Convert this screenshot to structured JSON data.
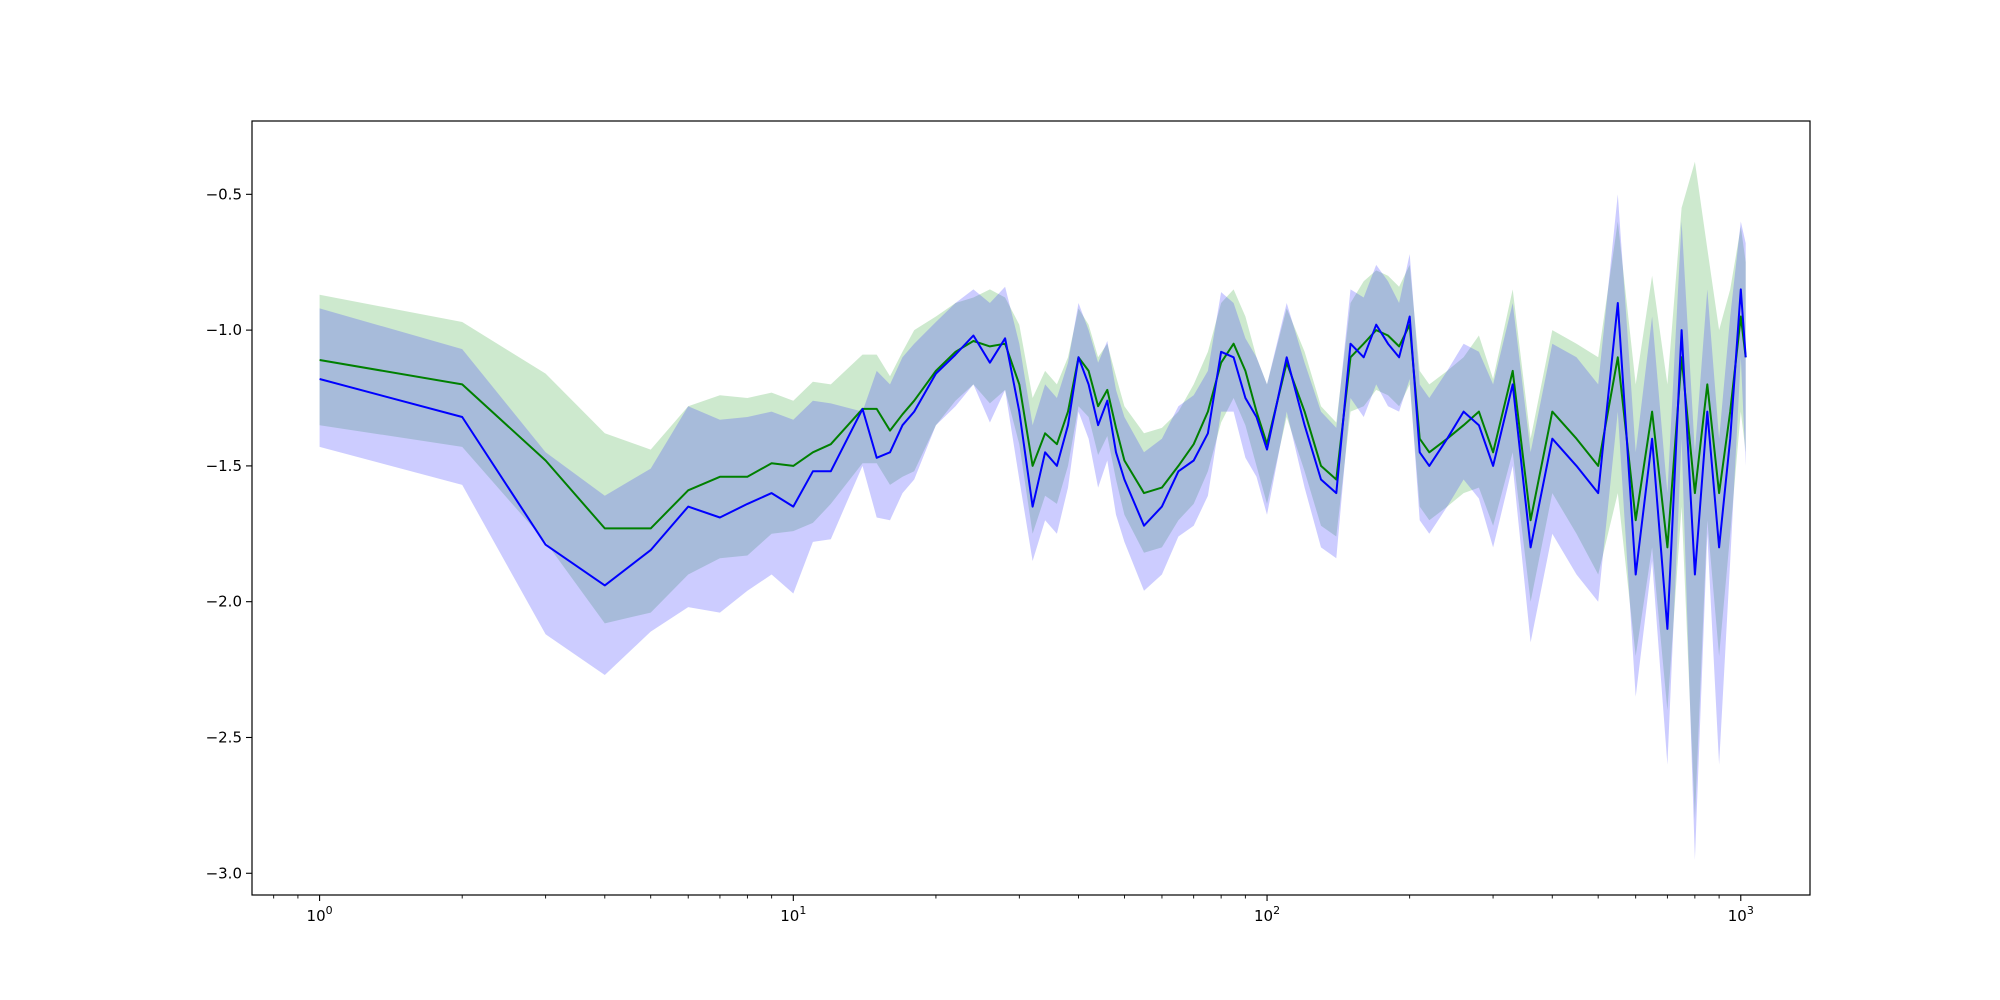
{
  "chart_data": {
    "type": "line",
    "title": "",
    "xlabel": "",
    "ylabel": "",
    "xscale": "log",
    "xlim": [
      0.72,
      1400
    ],
    "ylim": [
      -3.08,
      -0.23
    ],
    "grid": false,
    "legend": "none",
    "x_ticks": [
      {
        "value": 1,
        "base": "10",
        "exp": "0"
      },
      {
        "value": 10,
        "base": "10",
        "exp": "1"
      },
      {
        "value": 100,
        "base": "10",
        "exp": "2"
      },
      {
        "value": 1000,
        "base": "10",
        "exp": "3"
      }
    ],
    "y_ticks": [
      {
        "value": -0.5,
        "label": "−0.5"
      },
      {
        "value": -1.0,
        "label": "−1.0"
      },
      {
        "value": -1.5,
        "label": "−1.5"
      },
      {
        "value": -2.0,
        "label": "−2.0"
      },
      {
        "value": -2.5,
        "label": "−2.5"
      },
      {
        "value": -3.0,
        "label": "−3.0"
      }
    ],
    "series": [
      {
        "color": "#008000",
        "band_color": "#4caf50",
        "band_opacity": 0.28,
        "x": [
          1,
          2,
          3,
          4,
          5,
          6,
          7,
          8,
          9,
          10,
          11,
          12,
          14,
          15,
          16,
          17,
          18,
          20,
          22,
          24,
          26,
          28,
          30,
          32,
          34,
          36,
          38,
          40,
          42,
          44,
          46,
          48,
          50,
          55,
          60,
          65,
          70,
          75,
          80,
          85,
          90,
          95,
          100,
          110,
          120,
          130,
          140,
          150,
          160,
          170,
          180,
          190,
          200,
          210,
          220,
          240,
          260,
          280,
          300,
          330,
          360,
          400,
          450,
          500,
          550,
          600,
          650,
          700,
          750,
          800,
          850,
          900,
          950,
          1000,
          1024
        ],
        "y": [
          -1.11,
          -1.2,
          -1.48,
          -1.73,
          -1.73,
          -1.59,
          -1.54,
          -1.54,
          -1.49,
          -1.5,
          -1.45,
          -1.42,
          -1.29,
          -1.29,
          -1.37,
          -1.31,
          -1.26,
          -1.15,
          -1.08,
          -1.04,
          -1.06,
          -1.05,
          -1.2,
          -1.5,
          -1.38,
          -1.42,
          -1.3,
          -1.1,
          -1.15,
          -1.28,
          -1.22,
          -1.36,
          -1.48,
          -1.6,
          -1.58,
          -1.5,
          -1.42,
          -1.3,
          -1.12,
          -1.05,
          -1.15,
          -1.3,
          -1.42,
          -1.12,
          -1.3,
          -1.5,
          -1.55,
          -1.1,
          -1.05,
          -1.0,
          -1.02,
          -1.06,
          -0.98,
          -1.4,
          -1.45,
          -1.4,
          -1.35,
          -1.3,
          -1.45,
          -1.15,
          -1.7,
          -1.3,
          -1.4,
          -1.5,
          -1.1,
          -1.7,
          -1.3,
          -1.8,
          -1.1,
          -1.6,
          -1.2,
          -1.6,
          -1.3,
          -0.95,
          -1.1
        ],
        "upper": [
          -0.87,
          -0.97,
          -1.16,
          -1.38,
          -1.44,
          -1.28,
          -1.24,
          -1.25,
          -1.23,
          -1.26,
          -1.19,
          -1.2,
          -1.09,
          -1.09,
          -1.17,
          -1.08,
          -1.0,
          -0.95,
          -0.9,
          -0.88,
          -0.85,
          -0.88,
          -0.98,
          -1.25,
          -1.15,
          -1.2,
          -1.1,
          -0.92,
          -0.98,
          -1.1,
          -1.05,
          -1.17,
          -1.28,
          -1.38,
          -1.36,
          -1.3,
          -1.2,
          -1.08,
          -0.9,
          -0.85,
          -0.95,
          -1.1,
          -1.2,
          -0.92,
          -1.08,
          -1.28,
          -1.34,
          -0.9,
          -0.82,
          -0.78,
          -0.8,
          -0.84,
          -0.76,
          -1.15,
          -1.2,
          -1.15,
          -1.1,
          -1.02,
          -1.18,
          -0.85,
          -1.4,
          -1.0,
          -1.05,
          -1.1,
          -0.6,
          -1.2,
          -0.8,
          -1.2,
          -0.55,
          -0.38,
          -0.7,
          -1.0,
          -0.85,
          -0.62,
          -0.75
        ],
        "lower": [
          -1.35,
          -1.43,
          -1.78,
          -2.08,
          -2.04,
          -1.9,
          -1.84,
          -1.83,
          -1.75,
          -1.74,
          -1.71,
          -1.64,
          -1.49,
          -1.49,
          -1.57,
          -1.54,
          -1.52,
          -1.35,
          -1.26,
          -1.2,
          -1.27,
          -1.22,
          -1.42,
          -1.75,
          -1.61,
          -1.64,
          -1.5,
          -1.28,
          -1.32,
          -1.46,
          -1.39,
          -1.55,
          -1.68,
          -1.82,
          -1.8,
          -1.7,
          -1.64,
          -1.52,
          -1.34,
          -1.25,
          -1.35,
          -1.5,
          -1.64,
          -1.32,
          -1.52,
          -1.72,
          -1.76,
          -1.3,
          -1.28,
          -1.22,
          -1.24,
          -1.28,
          -1.2,
          -1.65,
          -1.7,
          -1.65,
          -1.6,
          -1.58,
          -1.72,
          -1.45,
          -2.0,
          -1.6,
          -1.75,
          -1.9,
          -1.6,
          -2.2,
          -1.8,
          -2.4,
          -1.65,
          -2.8,
          -1.7,
          -2.2,
          -1.75,
          -1.3,
          -1.45
        ]
      },
      {
        "color": "#0000ff",
        "band_color": "#3b3bff",
        "band_opacity": 0.26,
        "x": [
          1,
          2,
          3,
          4,
          5,
          6,
          7,
          8,
          9,
          10,
          11,
          12,
          14,
          15,
          16,
          17,
          18,
          20,
          22,
          24,
          26,
          28,
          30,
          32,
          34,
          36,
          38,
          40,
          42,
          44,
          46,
          48,
          50,
          55,
          60,
          65,
          70,
          75,
          80,
          85,
          90,
          95,
          100,
          110,
          120,
          130,
          140,
          150,
          160,
          170,
          180,
          190,
          200,
          210,
          220,
          240,
          260,
          280,
          300,
          330,
          360,
          400,
          450,
          500,
          550,
          600,
          650,
          700,
          750,
          800,
          850,
          900,
          950,
          1000,
          1024
        ],
        "y": [
          -1.18,
          -1.32,
          -1.79,
          -1.94,
          -1.81,
          -1.65,
          -1.69,
          -1.64,
          -1.6,
          -1.65,
          -1.52,
          -1.52,
          -1.29,
          -1.47,
          -1.45,
          -1.35,
          -1.3,
          -1.16,
          -1.09,
          -1.02,
          -1.12,
          -1.03,
          -1.3,
          -1.65,
          -1.45,
          -1.5,
          -1.35,
          -1.1,
          -1.2,
          -1.35,
          -1.26,
          -1.45,
          -1.55,
          -1.72,
          -1.65,
          -1.52,
          -1.48,
          -1.38,
          -1.08,
          -1.1,
          -1.25,
          -1.32,
          -1.44,
          -1.1,
          -1.35,
          -1.55,
          -1.6,
          -1.05,
          -1.1,
          -0.98,
          -1.05,
          -1.1,
          -0.95,
          -1.45,
          -1.5,
          -1.4,
          -1.3,
          -1.35,
          -1.5,
          -1.2,
          -1.8,
          -1.4,
          -1.5,
          -1.6,
          -0.9,
          -1.9,
          -1.4,
          -2.1,
          -1.0,
          -1.9,
          -1.3,
          -1.8,
          -1.4,
          -0.85,
          -1.1
        ],
        "upper": [
          -0.92,
          -1.07,
          -1.45,
          -1.61,
          -1.51,
          -1.28,
          -1.33,
          -1.32,
          -1.3,
          -1.33,
          -1.26,
          -1.27,
          -1.3,
          -1.15,
          -1.2,
          -1.1,
          -1.05,
          -0.97,
          -0.9,
          -0.85,
          -0.9,
          -0.84,
          -1.05,
          -1.35,
          -1.2,
          -1.25,
          -1.12,
          -0.9,
          -1.0,
          -1.12,
          -1.04,
          -1.22,
          -1.32,
          -1.45,
          -1.4,
          -1.28,
          -1.24,
          -1.15,
          -0.86,
          -0.9,
          -1.03,
          -1.1,
          -1.2,
          -0.9,
          -1.12,
          -1.3,
          -1.36,
          -0.85,
          -0.88,
          -0.76,
          -0.82,
          -0.9,
          -0.72,
          -1.2,
          -1.25,
          -1.15,
          -1.05,
          -1.08,
          -1.2,
          -0.9,
          -1.45,
          -1.05,
          -1.1,
          -1.2,
          -0.5,
          -1.45,
          -0.95,
          -1.6,
          -0.6,
          -1.45,
          -0.85,
          -1.4,
          -0.95,
          -0.6,
          -0.68
        ],
        "lower": [
          -1.43,
          -1.57,
          -2.12,
          -2.27,
          -2.11,
          -2.02,
          -2.04,
          -1.96,
          -1.9,
          -1.97,
          -1.78,
          -1.77,
          -1.5,
          -1.69,
          -1.7,
          -1.6,
          -1.55,
          -1.35,
          -1.28,
          -1.2,
          -1.34,
          -1.22,
          -1.55,
          -1.85,
          -1.7,
          -1.75,
          -1.58,
          -1.3,
          -1.4,
          -1.58,
          -1.48,
          -1.68,
          -1.78,
          -1.96,
          -1.9,
          -1.76,
          -1.72,
          -1.61,
          -1.3,
          -1.3,
          -1.47,
          -1.54,
          -1.68,
          -1.3,
          -1.58,
          -1.8,
          -1.84,
          -1.25,
          -1.32,
          -1.2,
          -1.28,
          -1.3,
          -1.18,
          -1.7,
          -1.75,
          -1.65,
          -1.55,
          -1.62,
          -1.8,
          -1.5,
          -2.15,
          -1.75,
          -1.9,
          -2.0,
          -1.3,
          -2.35,
          -1.85,
          -2.6,
          -1.4,
          -2.95,
          -1.75,
          -2.6,
          -1.85,
          -1.1,
          -1.5
        ]
      }
    ]
  }
}
